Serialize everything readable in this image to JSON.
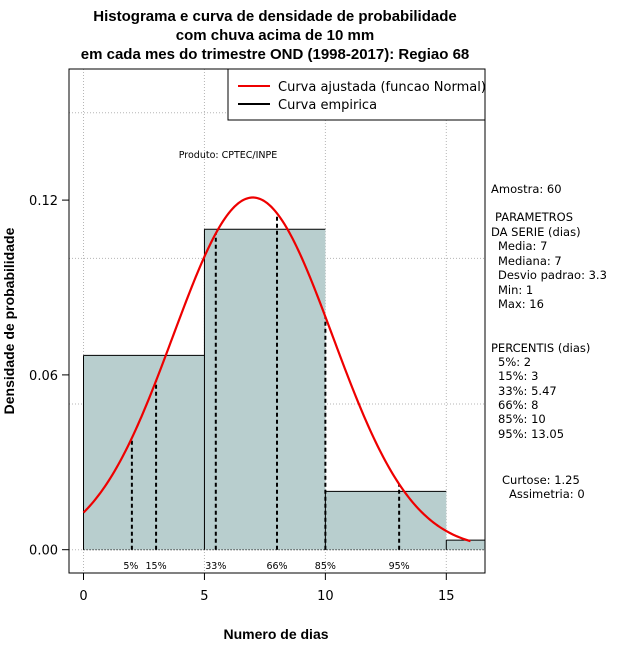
{
  "chart_data": {
    "type": "bar",
    "title_lines": [
      "Histograma e curva de densidade de probabilidade",
      "com chuva acima de 10 mm",
      "em cada mes do trimestre OND (1998-2017): Regiao 68"
    ],
    "xlabel": "Numero de dias",
    "ylabel": "Densidade de probabilidade",
    "xlim": [
      -0.6,
      16.6
    ],
    "ylim": [
      -0.008,
      0.165
    ],
    "xticks": [
      0,
      5,
      10,
      15
    ],
    "xtick_labels": [
      "0",
      "5",
      "10",
      "15"
    ],
    "yticks": [
      0.0,
      0.06,
      0.12
    ],
    "ytick_labels": [
      "0.00",
      "0.06",
      "0.12"
    ],
    "grid": true,
    "grid_x": [
      0,
      5,
      10,
      15
    ],
    "grid_y": [
      0.0,
      0.05,
      0.1,
      0.15
    ],
    "bar_color": "#b8cece",
    "curve_color": "#ee0000",
    "bins": [
      {
        "x0": 0,
        "x1": 5,
        "density": 0.0667
      },
      {
        "x0": 5,
        "x1": 10,
        "density": 0.11
      },
      {
        "x0": 10,
        "x1": 15,
        "density": 0.02
      },
      {
        "x0": 15,
        "x1": 16.6,
        "density": 0.0033
      }
    ],
    "normal_fit": {
      "mean": 7,
      "sd": 3.3,
      "x_from": 0,
      "x_to": 16
    },
    "percentiles": [
      {
        "label": "5%",
        "value": 2
      },
      {
        "label": "15%",
        "value": 3
      },
      {
        "label": "33%",
        "value": 5.47
      },
      {
        "label": "66%",
        "value": 8
      },
      {
        "label": "85%",
        "value": 10
      },
      {
        "label": "95%",
        "value": 13.05
      }
    ],
    "legend": {
      "position": "top-right",
      "entries": [
        {
          "label": "Curva ajustada (funcao Normal)",
          "color": "#ee0000"
        },
        {
          "label": "Curva empirica",
          "color": "#000000"
        }
      ]
    },
    "annotations": {
      "product": "Produto: CPTEC/INPE",
      "sample": "Amostra: 60",
      "params_title_1": "PARAMETROS",
      "params_title_2": "DA SERIE (dias)",
      "params": [
        "Media: 7",
        "Mediana: 7",
        "Desvio padrao: 3.3",
        "Min: 1",
        "Max: 16"
      ],
      "percentis_title": "PERCENTIS (dias)",
      "percentis": [
        "5%: 2",
        "15%: 3",
        "33%: 5.47",
        "66%: 8",
        "85%: 10",
        "95%: 13.05"
      ],
      "curtose": "Curtose: 1.25",
      "assimetria": "Assimetria: 0"
    }
  }
}
